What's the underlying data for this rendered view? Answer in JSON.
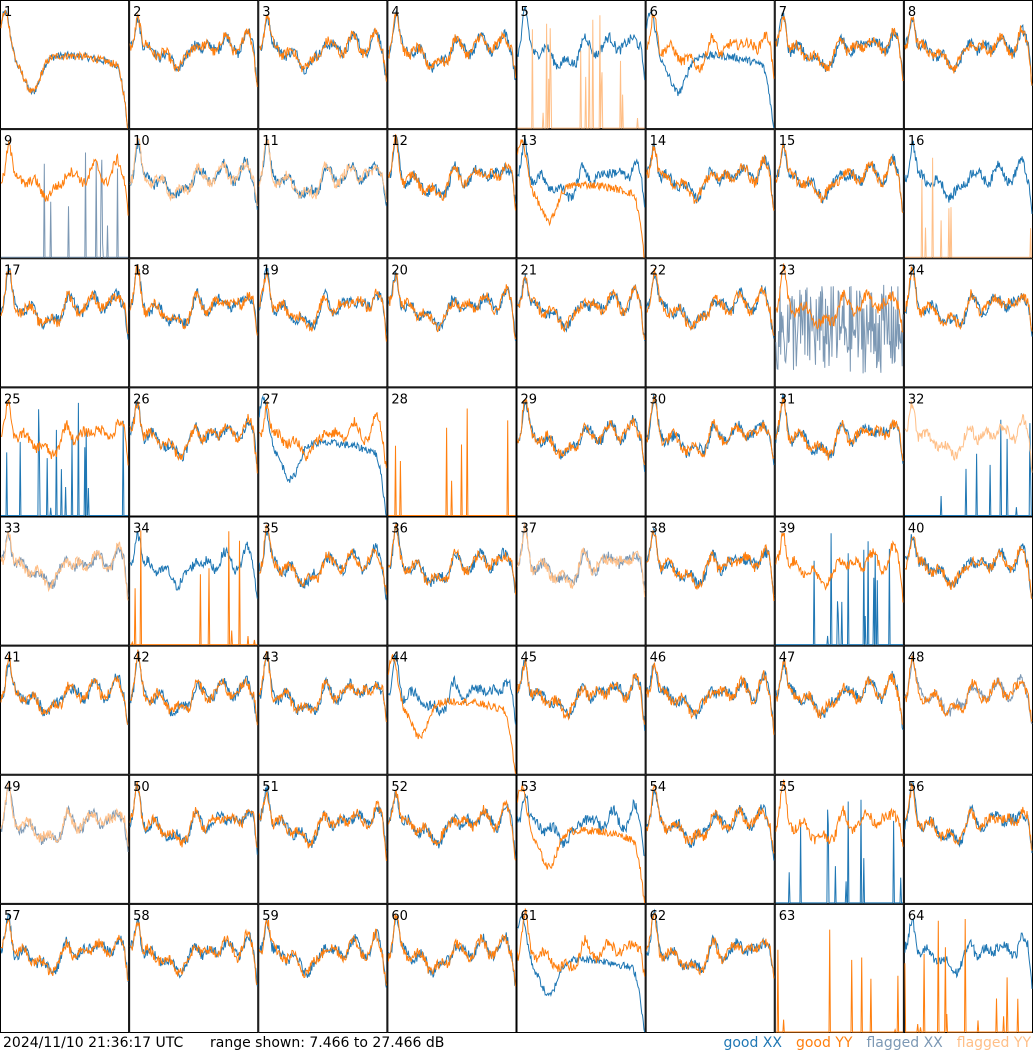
{
  "chart_data": {
    "type": "line",
    "layout": "8x8 grid of per-input spectra",
    "panel_labels": [
      "1",
      "2",
      "3",
      "4",
      "5",
      "6",
      "7",
      "8",
      "9",
      "10",
      "11",
      "12",
      "13",
      "14",
      "15",
      "16",
      "17",
      "18",
      "19",
      "20",
      "21",
      "22",
      "23",
      "24",
      "25",
      "26",
      "27",
      "28",
      "29",
      "30",
      "31",
      "32",
      "33",
      "34",
      "35",
      "36",
      "37",
      "38",
      "39",
      "40",
      "41",
      "42",
      "43",
      "44",
      "45",
      "46",
      "47",
      "48",
      "49",
      "50",
      "51",
      "52",
      "53",
      "54",
      "55",
      "56",
      "57",
      "58",
      "59",
      "60",
      "61",
      "62",
      "63",
      "64"
    ],
    "ylim": [
      7.466,
      27.466
    ],
    "y_unit": "dB",
    "series_legend": [
      {
        "key": "good_xx",
        "name": "good XX",
        "color": "#1f77b4"
      },
      {
        "key": "good_yy",
        "name": "good YY",
        "color": "#ff7f0e"
      },
      {
        "key": "flagged_xx",
        "name": "flagged XX",
        "color": "#7c98b4"
      },
      {
        "key": "flagged_yy",
        "name": "flagged YY",
        "color": "#ffbf87"
      }
    ],
    "panels": [
      {
        "id": 1,
        "xx": "broad",
        "yy": "broad"
      },
      {
        "id": 2,
        "xx": "normal",
        "yy": "normal"
      },
      {
        "id": 3,
        "xx": "normal",
        "yy": "normal"
      },
      {
        "id": 4,
        "xx": "normal",
        "yy": "normal"
      },
      {
        "id": 5,
        "xx": "normal",
        "yy": "flagged_spikes"
      },
      {
        "id": 6,
        "xx": "broad",
        "yy": "normal"
      },
      {
        "id": 7,
        "xx": "normal",
        "yy": "normal"
      },
      {
        "id": 8,
        "xx": "normal",
        "yy": "normal"
      },
      {
        "id": 9,
        "xx": "flagged_spikes",
        "yy": "normal"
      },
      {
        "id": 10,
        "xx": "normal",
        "yy": "flagged"
      },
      {
        "id": 11,
        "xx": "normal",
        "yy": "flagged"
      },
      {
        "id": 12,
        "xx": "normal",
        "yy": "normal"
      },
      {
        "id": 13,
        "xx": "normal",
        "yy": "broad"
      },
      {
        "id": 14,
        "xx": "normal",
        "yy": "normal"
      },
      {
        "id": 15,
        "xx": "normal",
        "yy": "normal"
      },
      {
        "id": 16,
        "xx": "normal",
        "yy": "flagged_spikes"
      },
      {
        "id": 17,
        "xx": "normal",
        "yy": "normal"
      },
      {
        "id": 18,
        "xx": "normal",
        "yy": "normal"
      },
      {
        "id": 19,
        "xx": "normal",
        "yy": "normal"
      },
      {
        "id": 20,
        "xx": "normal",
        "yy": "normal"
      },
      {
        "id": 21,
        "xx": "normal",
        "yy": "normal"
      },
      {
        "id": 22,
        "xx": "normal",
        "yy": "normal"
      },
      {
        "id": 23,
        "xx": "flagged_noise",
        "yy": "normal"
      },
      {
        "id": 24,
        "xx": "normal",
        "yy": "normal"
      },
      {
        "id": 25,
        "xx": "good_spikes",
        "yy": "normal"
      },
      {
        "id": 26,
        "xx": "normal",
        "yy": "normal"
      },
      {
        "id": 27,
        "xx": "broad",
        "yy": "normal"
      },
      {
        "id": 28,
        "xx": "none",
        "yy": "spikes"
      },
      {
        "id": 29,
        "xx": "normal",
        "yy": "normal"
      },
      {
        "id": 30,
        "xx": "normal",
        "yy": "normal"
      },
      {
        "id": 31,
        "xx": "normal",
        "yy": "normal"
      },
      {
        "id": 32,
        "xx": "good_spikes",
        "yy": "flagged"
      },
      {
        "id": 33,
        "xx": "flagged",
        "yy": "flagged"
      },
      {
        "id": 34,
        "xx": "normal",
        "yy": "spikes"
      },
      {
        "id": 35,
        "xx": "normal",
        "yy": "normal"
      },
      {
        "id": 36,
        "xx": "normal",
        "yy": "normal"
      },
      {
        "id": 37,
        "xx": "flagged",
        "yy": "flagged"
      },
      {
        "id": 38,
        "xx": "normal",
        "yy": "normal"
      },
      {
        "id": 39,
        "xx": "good_spikes",
        "yy": "normal"
      },
      {
        "id": 40,
        "xx": "normal",
        "yy": "normal"
      },
      {
        "id": 41,
        "xx": "normal",
        "yy": "normal"
      },
      {
        "id": 42,
        "xx": "normal",
        "yy": "normal"
      },
      {
        "id": 43,
        "xx": "normal",
        "yy": "normal"
      },
      {
        "id": 44,
        "xx": "normal",
        "yy": "broad"
      },
      {
        "id": 45,
        "xx": "normal",
        "yy": "normal"
      },
      {
        "id": 46,
        "xx": "normal",
        "yy": "normal"
      },
      {
        "id": 47,
        "xx": "normal",
        "yy": "normal"
      },
      {
        "id": 48,
        "xx": "flagged",
        "yy": "normal"
      },
      {
        "id": 49,
        "xx": "flagged",
        "yy": "flagged"
      },
      {
        "id": 50,
        "xx": "normal",
        "yy": "normal"
      },
      {
        "id": 51,
        "xx": "normal",
        "yy": "normal"
      },
      {
        "id": 52,
        "xx": "normal",
        "yy": "normal"
      },
      {
        "id": 53,
        "xx": "normal",
        "yy": "broad"
      },
      {
        "id": 54,
        "xx": "normal",
        "yy": "normal"
      },
      {
        "id": 55,
        "xx": "spikes",
        "yy": "normal"
      },
      {
        "id": 56,
        "xx": "normal",
        "yy": "normal"
      },
      {
        "id": 57,
        "xx": "normal",
        "yy": "normal"
      },
      {
        "id": 58,
        "xx": "normal",
        "yy": "normal"
      },
      {
        "id": 59,
        "xx": "normal",
        "yy": "normal"
      },
      {
        "id": 60,
        "xx": "normal",
        "yy": "normal"
      },
      {
        "id": 61,
        "xx": "broad",
        "yy": "normal"
      },
      {
        "id": 62,
        "xx": "normal",
        "yy": "normal"
      },
      {
        "id": 63,
        "xx": "none",
        "yy": "spikes"
      },
      {
        "id": 64,
        "xx": "normal",
        "yy": "good_spikes"
      }
    ]
  },
  "footer": {
    "timestamp": "2024/11/10 21:36:17 UTC",
    "range_text": "range shown: 7.466 to 27.466 dB",
    "legend": {
      "good_xx": "good XX",
      "good_yy": "good YY",
      "flagged_xx": "flagged XX",
      "flagged_yy": "flagged YY"
    }
  }
}
